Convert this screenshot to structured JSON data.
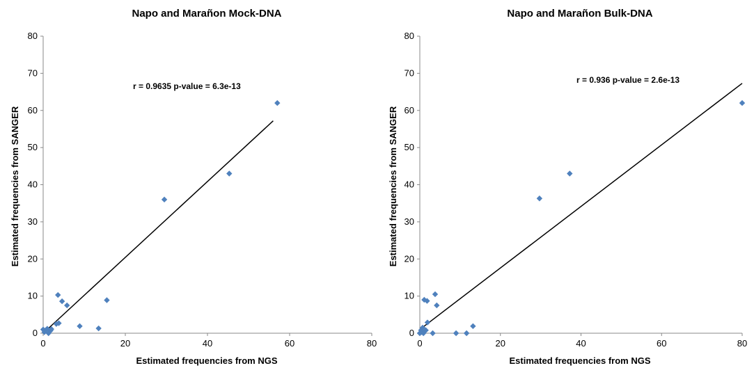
{
  "chart_data": [
    {
      "type": "scatter",
      "title": "Napo and Marañon Mock-DNA",
      "xlabel": "Estimated frequencies from NGS",
      "ylabel": "Estimated frequencies from SANGER",
      "xlim": [
        0,
        80
      ],
      "ylim": [
        0,
        80
      ],
      "xticks": [
        "0",
        "20",
        "40",
        "60",
        "80"
      ],
      "yticks": [
        "0",
        "10",
        "20",
        "30",
        "40",
        "50",
        "60",
        "70",
        "80"
      ],
      "annotation": "r = 0.9635 p-value = 6.3e-13",
      "marker_color": "#4f81bd",
      "grid": false,
      "points": [
        [
          0,
          1
        ],
        [
          0.3,
          0.3
        ],
        [
          0.6,
          0.8
        ],
        [
          1,
          1.2
        ],
        [
          1.3,
          0
        ],
        [
          1.8,
          0.7
        ],
        [
          2,
          1.1
        ],
        [
          3.2,
          2.5
        ],
        [
          3.8,
          2.7
        ],
        [
          3.6,
          10.3
        ],
        [
          4.6,
          8.6
        ],
        [
          5.8,
          7.5
        ],
        [
          8.9,
          1.9
        ],
        [
          13.5,
          1.3
        ],
        [
          15.5,
          8.9
        ],
        [
          29.5,
          36
        ],
        [
          45.3,
          43
        ],
        [
          57,
          62
        ]
      ],
      "fit_line": [
        [
          0,
          0
        ],
        [
          56,
          57.2
        ]
      ]
    },
    {
      "type": "scatter",
      "title": "Napo and Marañon Bulk-DNA",
      "xlabel": "Estimated frequencies from NGS",
      "ylabel": "Estimated frequencies from SANGER",
      "xlim": [
        0,
        80
      ],
      "ylim": [
        0,
        80
      ],
      "xticks": [
        "0",
        "20",
        "40",
        "60",
        "80"
      ],
      "yticks": [
        "0",
        "10",
        "20",
        "30",
        "40",
        "50",
        "60",
        "70",
        "80"
      ],
      "annotation": "r = 0.936 p-value = 2.6e-13",
      "marker_color": "#4f81bd",
      "grid": false,
      "points": [
        [
          0,
          0
        ],
        [
          0.3,
          0.8
        ],
        [
          0.5,
          0.3
        ],
        [
          0.7,
          1.5
        ],
        [
          0.9,
          0
        ],
        [
          1.1,
          9
        ],
        [
          1.5,
          0.8
        ],
        [
          1.8,
          8.7
        ],
        [
          1.9,
          2.9
        ],
        [
          3.2,
          0
        ],
        [
          3.8,
          10.5
        ],
        [
          4.2,
          7.5
        ],
        [
          9,
          0
        ],
        [
          11.6,
          0
        ],
        [
          13.2,
          1.9
        ],
        [
          29.7,
          36.3
        ],
        [
          37.2,
          43
        ],
        [
          80,
          62
        ]
      ],
      "fit_line": [
        [
          0,
          1
        ],
        [
          80,
          67.3
        ]
      ]
    }
  ]
}
